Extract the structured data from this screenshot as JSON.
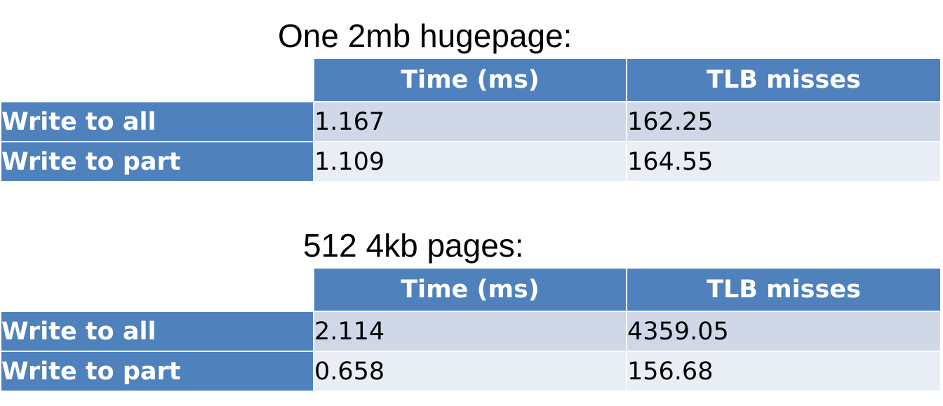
{
  "colors": {
    "header_blue": "#4f81bd",
    "row_light": "#d0d8e8",
    "row_lighter": "#e9edf4"
  },
  "sections": [
    {
      "title": "One 2mb hugepage:",
      "columns": [
        "Time (ms)",
        "TLB misses"
      ],
      "rows": [
        {
          "label": "Write to all",
          "time_ms": "1.167",
          "tlb_misses": "162.25"
        },
        {
          "label": "Write to part",
          "time_ms": "1.109",
          "tlb_misses": "164.55"
        }
      ]
    },
    {
      "title": "512 4kb pages:",
      "columns": [
        "Time (ms)",
        "TLB misses"
      ],
      "rows": [
        {
          "label": "Write to all",
          "time_ms": "2.114",
          "tlb_misses": "4359.05"
        },
        {
          "label": "Write to part",
          "time_ms": "0.658",
          "tlb_misses": "156.68"
        }
      ]
    }
  ]
}
